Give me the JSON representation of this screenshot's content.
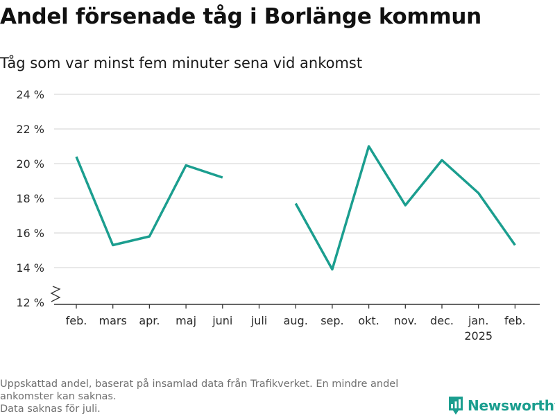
{
  "title": "Andel försenade tåg i Borlänge kommun",
  "subtitle": "Tåg som var minst fem minuter sena vid ankomst",
  "footnote": [
    "Uppskattad andel, baserat på insamlad data från Trafikverket. En mindre andel",
    "ankomster kan saknas.",
    "Data saknas för juli."
  ],
  "brand": {
    "name": "Newsworthy",
    "icon": "newsworthy-logo-icon",
    "color": "#1b9e8f"
  },
  "chart_data": {
    "type": "line",
    "title": "Andel försenade tåg i Borlänge kommun",
    "subtitle": "Tåg som var minst fem minuter sena vid ankomst",
    "categories": [
      "feb.",
      "mars",
      "apr.",
      "maj",
      "juni",
      "juli",
      "aug.",
      "sep.",
      "okt.",
      "nov.",
      "dec.",
      "jan.",
      "feb."
    ],
    "category_sublabels": {
      "11": "2025"
    },
    "series": [
      {
        "values": [
          20.4,
          15.3,
          15.8,
          19.9,
          19.2,
          null,
          17.7,
          13.9,
          21.0,
          17.6,
          20.2,
          18.3,
          15.3
        ],
        "color": "#1b9e8f"
      }
    ],
    "ylim": [
      12,
      24
    ],
    "yticks": [
      12,
      14,
      16,
      18,
      20,
      22,
      24
    ],
    "ytick_suffix": " %",
    "axis_break": true,
    "grid": true,
    "legend": "none",
    "xlabel": "",
    "ylabel": ""
  }
}
